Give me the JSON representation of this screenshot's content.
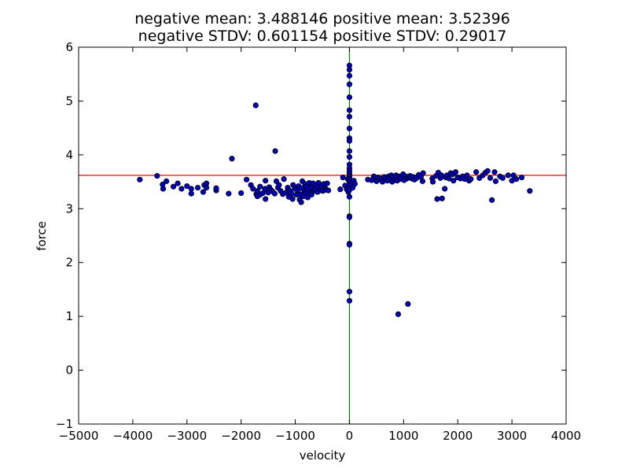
{
  "chart_data": {
    "type": "scatter",
    "title_lines": [
      "negative mean: 3.488146    positive mean: 3.52396",
      "negative STDV: 0.601154    positive STDV: 0.29017"
    ],
    "xlabel": "velocity",
    "ylabel": "force",
    "xlim": [
      -5000,
      4000
    ],
    "ylim": [
      -1,
      6
    ],
    "xticks": [
      -5000,
      -4000,
      -3000,
      -2000,
      -1000,
      0,
      1000,
      2000,
      3000,
      4000
    ],
    "yticks": [
      -1,
      0,
      1,
      2,
      3,
      4,
      5,
      6
    ],
    "grid": false,
    "reference_lines": [
      {
        "orientation": "horizontal",
        "value": 3.62,
        "color": "#ff0000"
      },
      {
        "orientation": "vertical",
        "value": 0,
        "color": "#007f00"
      }
    ],
    "marker_color": "#0000bf",
    "marker_edge": "#000000",
    "points": [
      [
        -3870,
        3.54
      ],
      [
        -3550,
        3.61
      ],
      [
        -3450,
        3.45
      ],
      [
        -3440,
        3.37
      ],
      [
        -3380,
        3.51
      ],
      [
        -3250,
        3.41
      ],
      [
        -3170,
        3.47
      ],
      [
        -3100,
        3.37
      ],
      [
        -3000,
        3.42
      ],
      [
        -2920,
        3.28
      ],
      [
        -2920,
        3.37
      ],
      [
        -2800,
        3.39
      ],
      [
        -2700,
        3.31
      ],
      [
        -2680,
        3.44
      ],
      [
        -2640,
        3.47
      ],
      [
        -2640,
        3.39
      ],
      [
        -2460,
        3.34
      ],
      [
        -2460,
        3.38
      ],
      [
        -2230,
        3.28
      ],
      [
        -2170,
        3.93
      ],
      [
        -2000,
        3.29
      ],
      [
        -1900,
        3.54
      ],
      [
        -1820,
        3.44
      ],
      [
        -1780,
        3.37
      ],
      [
        -1730,
        4.92
      ],
      [
        -1720,
        3.27
      ],
      [
        -1700,
        3.33
      ],
      [
        -1700,
        3.23
      ],
      [
        -1650,
        3.41
      ],
      [
        -1650,
        3.26
      ],
      [
        -1600,
        3.29
      ],
      [
        -1560,
        3.37
      ],
      [
        -1550,
        3.18
      ],
      [
        -1550,
        3.52
      ],
      [
        -1500,
        3.3
      ],
      [
        -1480,
        3.4
      ],
      [
        -1450,
        3.35
      ],
      [
        -1420,
        3.32
      ],
      [
        -1380,
        3.28
      ],
      [
        -1370,
        4.07
      ],
      [
        -1350,
        3.51
      ],
      [
        -1320,
        3.39
      ],
      [
        -1300,
        3.44
      ],
      [
        -1270,
        3.33
      ],
      [
        -1230,
        3.27
      ],
      [
        -1210,
        3.55
      ],
      [
        -1170,
        3.3
      ],
      [
        -1140,
        3.39
      ],
      [
        -1120,
        3.22
      ],
      [
        -1100,
        3.33
      ],
      [
        -1070,
        3.28
      ],
      [
        -1050,
        3.18
      ],
      [
        -1040,
        3.44
      ],
      [
        -1010,
        3.37
      ],
      [
        -980,
        3.26
      ],
      [
        -960,
        3.35
      ],
      [
        -940,
        3.42
      ],
      [
        -920,
        3.17
      ],
      [
        -910,
        3.27
      ],
      [
        -890,
        3.12
      ],
      [
        -880,
        3.38
      ],
      [
        -870,
        3.51
      ],
      [
        -850,
        3.23
      ],
      [
        -830,
        3.33
      ],
      [
        -820,
        3.46
      ],
      [
        -800,
        3.29
      ],
      [
        -790,
        3.41
      ],
      [
        -770,
        3.21
      ],
      [
        -760,
        3.35
      ],
      [
        -740,
        3.48
      ],
      [
        -720,
        3.3
      ],
      [
        -700,
        3.26
      ],
      [
        -690,
        3.4
      ],
      [
        -670,
        3.47
      ],
      [
        -650,
        3.33
      ],
      [
        -630,
        3.36
      ],
      [
        -610,
        3.44
      ],
      [
        -590,
        3.31
      ],
      [
        -570,
        3.48
      ],
      [
        -550,
        3.39
      ],
      [
        -530,
        3.34
      ],
      [
        -510,
        3.42
      ],
      [
        -490,
        3.33
      ],
      [
        -470,
        3.46
      ],
      [
        -450,
        3.38
      ],
      [
        -430,
        3.35
      ],
      [
        -410,
        3.47
      ],
      [
        -390,
        3.34
      ],
      [
        -170,
        3.36
      ],
      [
        -120,
        3.58
      ],
      [
        -80,
        3.43
      ],
      [
        -50,
        3.36
      ],
      [
        -30,
        3.55
      ],
      [
        -20,
        3.31
      ],
      [
        0,
        5.66
      ],
      [
        0,
        5.58
      ],
      [
        0,
        5.47
      ],
      [
        0,
        5.31
      ],
      [
        0,
        5.07
      ],
      [
        0,
        4.83
      ],
      [
        0,
        4.71
      ],
      [
        0,
        4.49
      ],
      [
        0,
        4.31
      ],
      [
        0,
        4.26
      ],
      [
        0,
        4.07
      ],
      [
        0,
        3.96
      ],
      [
        0,
        3.82
      ],
      [
        0,
        3.75
      ],
      [
        0,
        3.7
      ],
      [
        0,
        3.65
      ],
      [
        0,
        3.6
      ],
      [
        0,
        3.55
      ],
      [
        0,
        3.5
      ],
      [
        0,
        3.45
      ],
      [
        0,
        3.35
      ],
      [
        0,
        3.22
      ],
      [
        0,
        2.86
      ],
      [
        0,
        2.84
      ],
      [
        0,
        2.35
      ],
      [
        0,
        2.33
      ],
      [
        0,
        1.46
      ],
      [
        0,
        1.29
      ],
      [
        20,
        3.52
      ],
      [
        40,
        3.46
      ],
      [
        60,
        3.39
      ],
      [
        80,
        3.52
      ],
      [
        100,
        3.46
      ],
      [
        340,
        3.54
      ],
      [
        410,
        3.53
      ],
      [
        450,
        3.6
      ],
      [
        480,
        3.55
      ],
      [
        500,
        3.51
      ],
      [
        530,
        3.58
      ],
      [
        560,
        3.56
      ],
      [
        590,
        3.53
      ],
      [
        610,
        3.5
      ],
      [
        640,
        3.59
      ],
      [
        670,
        3.57
      ],
      [
        700,
        3.52
      ],
      [
        720,
        3.6
      ],
      [
        740,
        3.55
      ],
      [
        770,
        3.62
      ],
      [
        790,
        3.5
      ],
      [
        810,
        3.58
      ],
      [
        840,
        3.55
      ],
      [
        860,
        3.62
      ],
      [
        880,
        3.52
      ],
      [
        900,
        1.04
      ],
      [
        910,
        3.6
      ],
      [
        930,
        3.55
      ],
      [
        960,
        3.58
      ],
      [
        990,
        3.64
      ],
      [
        1010,
        3.53
      ],
      [
        1040,
        3.6
      ],
      [
        1060,
        3.56
      ],
      [
        1080,
        1.23
      ],
      [
        1100,
        3.59
      ],
      [
        1120,
        3.61
      ],
      [
        1150,
        3.56
      ],
      [
        1180,
        3.59
      ],
      [
        1200,
        3.54
      ],
      [
        1240,
        3.57
      ],
      [
        1280,
        3.63
      ],
      [
        1320,
        3.59
      ],
      [
        1350,
        3.51
      ],
      [
        1360,
        3.66
      ],
      [
        1530,
        3.56
      ],
      [
        1540,
        3.5
      ],
      [
        1600,
        3.61
      ],
      [
        1620,
        3.18
      ],
      [
        1640,
        3.67
      ],
      [
        1680,
        3.57
      ],
      [
        1700,
        3.62
      ],
      [
        1710,
        3.19
      ],
      [
        1760,
        3.37
      ],
      [
        1780,
        3.58
      ],
      [
        1800,
        3.62
      ],
      [
        1840,
        3.56
      ],
      [
        1870,
        3.66
      ],
      [
        1910,
        3.64
      ],
      [
        1920,
        3.52
      ],
      [
        1960,
        3.68
      ],
      [
        2000,
        3.58
      ],
      [
        2050,
        3.56
      ],
      [
        2090,
        3.6
      ],
      [
        2130,
        3.55
      ],
      [
        2170,
        3.62
      ],
      [
        2210,
        3.52
      ],
      [
        2240,
        3.55
      ],
      [
        2340,
        3.68
      ],
      [
        2400,
        3.57
      ],
      [
        2460,
        3.62
      ],
      [
        2510,
        3.67
      ],
      [
        2550,
        3.7
      ],
      [
        2600,
        3.57
      ],
      [
        2630,
        3.16
      ],
      [
        2680,
        3.68
      ],
      [
        2700,
        3.51
      ],
      [
        2780,
        3.6
      ],
      [
        2830,
        3.57
      ],
      [
        2930,
        3.62
      ],
      [
        3000,
        3.52
      ],
      [
        3030,
        3.62
      ],
      [
        3080,
        3.55
      ],
      [
        3180,
        3.58
      ],
      [
        3330,
        3.33
      ]
    ]
  }
}
